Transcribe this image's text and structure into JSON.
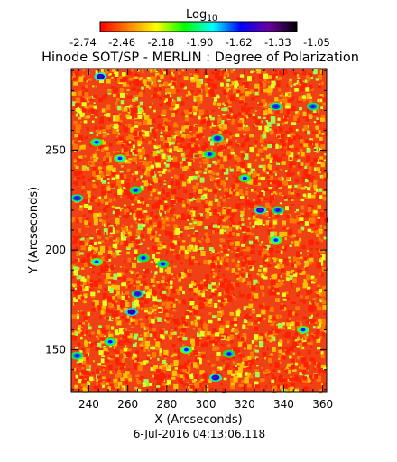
{
  "chart_data": {
    "type": "heatmap",
    "title": "Hinode SOT/SP - MERLIN : Degree of Polarization",
    "xlabel": "X (Arcseconds)",
    "ylabel": "Y (Arcseconds)",
    "footer": "6-Jul-2016 04:13:06.118",
    "xlim": [
      231,
      362
    ],
    "ylim": [
      129,
      291
    ],
    "xticks": [
      240,
      260,
      280,
      300,
      320,
      340,
      360
    ],
    "yticks": [
      150,
      200,
      250
    ],
    "colorbar": {
      "label": "Log",
      "label_sub": "10",
      "range": [
        -2.74,
        -1.05
      ],
      "ticks": [
        "-2.74",
        "-2.46",
        "-2.18",
        "-1.90",
        "-1.62",
        "-1.33",
        "-1.05"
      ],
      "colors": [
        "#ff0000",
        "#ff8000",
        "#ffff00",
        "#00ff00",
        "#00ffff",
        "#0000ff",
        "#6a00a0",
        "#000000"
      ]
    },
    "blobs": [
      {
        "x": 246,
        "y": 287,
        "value": -1.25
      },
      {
        "x": 336,
        "y": 272,
        "value": -1.35
      },
      {
        "x": 355,
        "y": 272,
        "value": -1.4
      },
      {
        "x": 306,
        "y": 256,
        "value": -1.35
      },
      {
        "x": 302,
        "y": 248,
        "value": -1.45
      },
      {
        "x": 244,
        "y": 254,
        "value": -1.5
      },
      {
        "x": 256,
        "y": 246,
        "value": -1.55
      },
      {
        "x": 234,
        "y": 226,
        "value": -1.35
      },
      {
        "x": 264,
        "y": 230,
        "value": -1.45
      },
      {
        "x": 328,
        "y": 220,
        "value": -1.3
      },
      {
        "x": 337,
        "y": 220,
        "value": -1.4
      },
      {
        "x": 320,
        "y": 236,
        "value": -1.5
      },
      {
        "x": 268,
        "y": 196,
        "value": -1.45
      },
      {
        "x": 278,
        "y": 193,
        "value": -1.45
      },
      {
        "x": 244,
        "y": 194,
        "value": -1.55
      },
      {
        "x": 262,
        "y": 169,
        "value": -1.2
      },
      {
        "x": 265,
        "y": 178,
        "value": -1.35
      },
      {
        "x": 251,
        "y": 154,
        "value": -1.5
      },
      {
        "x": 234,
        "y": 147,
        "value": -1.4
      },
      {
        "x": 305,
        "y": 136,
        "value": -1.3
      },
      {
        "x": 312,
        "y": 148,
        "value": -1.45
      },
      {
        "x": 290,
        "y": 150,
        "value": -1.55
      },
      {
        "x": 350,
        "y": 160,
        "value": -1.55
      },
      {
        "x": 336,
        "y": 205,
        "value": -1.55
      }
    ]
  }
}
